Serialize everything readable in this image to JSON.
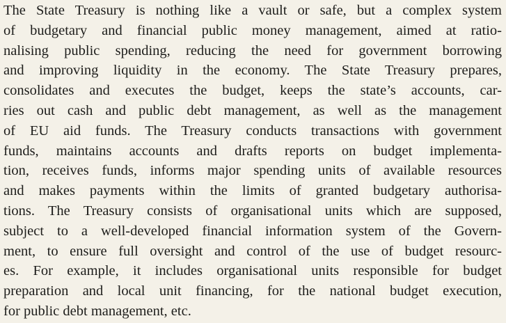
{
  "paragraph": {
    "lines": [
      "The State Treasury is nothing like a vault or safe, but a complex system",
      "of budgetary and financial public money management, aimed at ratio-",
      "nalising public spending, reducing the need for government borrowing",
      "and improving liquidity in the economy. The State Treasury prepares,",
      "consolidates and executes the budget, keeps the state’s accounts, car-",
      "ries out cash and public debt management, as well as the management",
      "of EU aid funds. The Treasury conducts transactions with government",
      "funds, maintains accounts and drafts reports on budget implementa-",
      "tion, receives funds, informs major spending units of available resources",
      "and makes payments within the limits of granted budgetary authorisa-",
      "tions. The Treasury consists of organisational units which are supposed,",
      "subject to a well-developed financial information system of the Govern-",
      "ment, to ensure full oversight and control of the use of budget resourc-",
      "es. For example, it includes organisational units responsible for budget",
      "preparation and local unit financing, for the national budget execution,",
      "for public debt management, etc."
    ]
  }
}
